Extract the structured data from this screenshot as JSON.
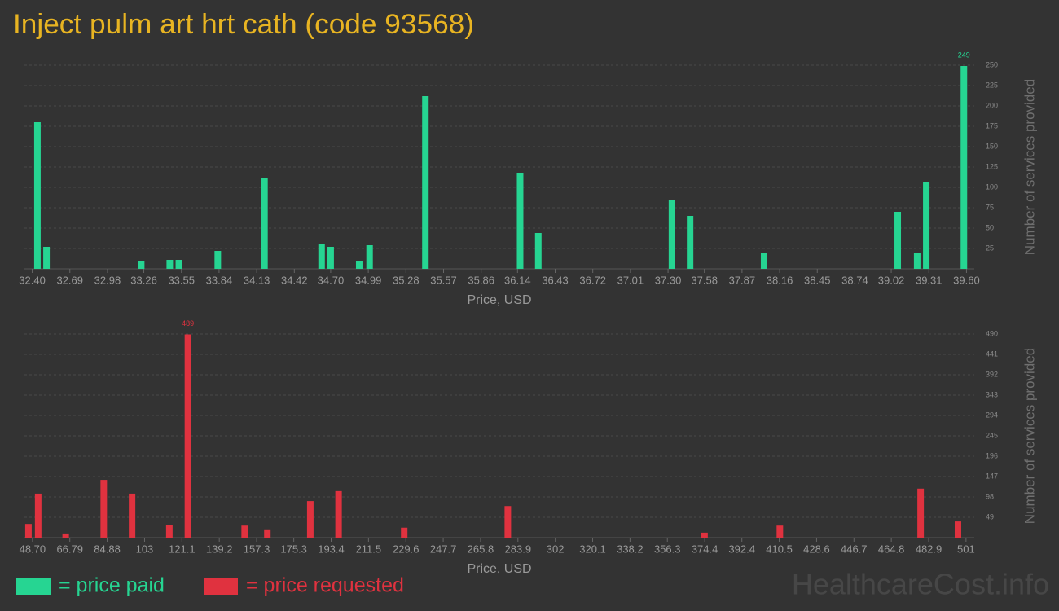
{
  "title": "Inject pulm art hrt cath (code 93568)",
  "watermark": "HealthcareCost.info",
  "chart_data": [
    {
      "type": "bar",
      "xlabel": "Price, USD",
      "ylabel": "Number of services provided",
      "grid": true,
      "xlim": [
        32.34,
        39.66
      ],
      "ylim": [
        0,
        250
      ],
      "xticks": [
        {
          "value": 32.4,
          "label": "32.40"
        },
        32.69,
        32.98,
        33.26,
        33.55,
        33.84,
        34.13,
        34.42,
        {
          "value": 34.7,
          "label": "34.70"
        },
        34.99,
        35.28,
        35.57,
        35.86,
        36.14,
        36.43,
        36.72,
        37.01,
        {
          "value": 37.3,
          "label": "37.30"
        },
        37.58,
        37.87,
        38.16,
        38.45,
        38.74,
        39.02,
        39.31,
        {
          "value": 39.6,
          "label": "39.60"
        }
      ],
      "yticks": [
        25,
        50,
        75,
        100,
        125,
        150,
        175,
        200,
        225,
        250
      ],
      "x": [
        32.44,
        32.51,
        33.24,
        33.46,
        33.53,
        33.83,
        34.19,
        34.63,
        34.7,
        34.92,
        35.0,
        35.43,
        36.16,
        36.3,
        37.33,
        37.47,
        38.04,
        39.07,
        39.22,
        39.29,
        39.58
      ],
      "series": [
        {
          "name": "= price paid",
          "color": "#26d592",
          "values": [
            180,
            27,
            10,
            11,
            11,
            22,
            112,
            30,
            27,
            10,
            29,
            212,
            118,
            44,
            85,
            65,
            20,
            70,
            20,
            106,
            249
          ]
        }
      ]
    },
    {
      "type": "bar",
      "xlabel": "Price, USD",
      "ylabel": "Number of services provided",
      "grid": true,
      "xlim": [
        44.8,
        505
      ],
      "ylim": [
        0,
        490
      ],
      "xticks": [
        {
          "value": 48.7,
          "label": "48.70"
        },
        66.79,
        84.88,
        103,
        121.1,
        139.2,
        157.3,
        175.3,
        193.4,
        211.5,
        229.6,
        247.7,
        265.8,
        283.9,
        302,
        320.1,
        338.2,
        356.3,
        374.4,
        392.4,
        410.5,
        428.6,
        446.7,
        464.8,
        482.9,
        501
      ],
      "yticks": [
        49,
        98,
        147,
        196,
        245,
        294,
        343,
        392,
        441,
        490
      ],
      "x": [
        46.74,
        51.45,
        64.78,
        83.22,
        96.95,
        115.0,
        124.0,
        151.5,
        162.5,
        183.3,
        197.0,
        228.8,
        279.0,
        374.3,
        410.8,
        479.0,
        497.1
      ],
      "series": [
        {
          "name": "= price requested",
          "color": "#e0323f",
          "values": [
            33,
            106,
            10,
            139,
            106,
            31,
            489,
            29,
            20,
            88,
            112,
            24,
            76,
            12,
            29,
            118,
            39
          ]
        }
      ]
    }
  ]
}
